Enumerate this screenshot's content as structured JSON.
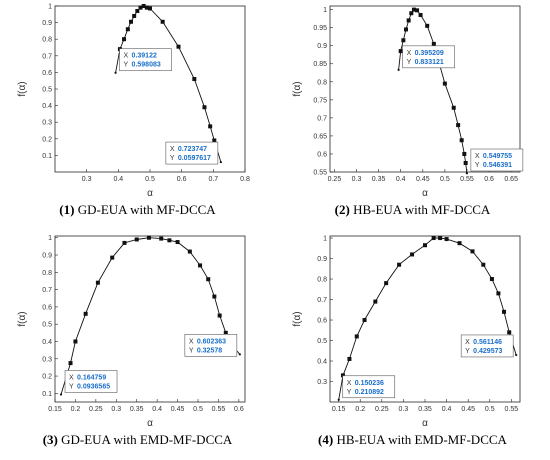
{
  "chart_data": [
    {
      "type": "line",
      "caption_num": "(1)",
      "caption_text": " GD-EUA with MF-DCCA",
      "xlabel": "α",
      "ylabel": "f(α)",
      "xlim": [
        0.2,
        0.8
      ],
      "ylim": [
        0.0,
        1.0
      ],
      "xticks": [
        "0.3",
        "0.4",
        "0.5",
        "0.6",
        "0.7",
        "0.8"
      ],
      "yticks": [
        "0.1",
        "0.2",
        "0.3",
        "0.4",
        "0.5",
        "0.6",
        "0.7",
        "0.8",
        "0.9",
        "1"
      ],
      "x": [
        0.39122,
        0.405,
        0.418,
        0.43,
        0.44,
        0.45,
        0.46,
        0.47,
        0.48,
        0.49,
        0.5,
        0.54,
        0.59,
        0.64,
        0.672,
        0.69,
        0.703,
        0.723747
      ],
      "y": [
        0.598083,
        0.74,
        0.8,
        0.86,
        0.905,
        0.94,
        0.97,
        0.99,
        1.0,
        0.99,
        0.985,
        0.905,
        0.755,
        0.56,
        0.39,
        0.275,
        0.19,
        0.0597617
      ],
      "datatips": [
        {
          "x_label": "X",
          "x_value": "0.39122",
          "y_label": "Y",
          "y_value": "0.598083",
          "x": 0.39122,
          "y": 0.598083,
          "side": "right"
        },
        {
          "x_label": "X",
          "x_value": "0.723747",
          "y_label": "Y",
          "y_value": "0.0597617",
          "x": 0.723747,
          "y": 0.0597617,
          "side": "left"
        }
      ]
    },
    {
      "type": "line",
      "caption_num": "(2)",
      "caption_text": " HB-EUA with MF-DCCA",
      "xlabel": "α",
      "ylabel": "f(α)",
      "xlim": [
        0.24,
        0.67
      ],
      "ylim": [
        0.55,
        1.01
      ],
      "xticks": [
        "0.25",
        "0.3",
        "0.35",
        "0.4",
        "0.45",
        "0.5",
        "0.55",
        "0.6",
        "0.65"
      ],
      "yticks": [
        "0.55",
        "0.6",
        "0.65",
        "0.7",
        "0.75",
        "0.8",
        "0.85",
        "0.9",
        "0.95",
        "1"
      ],
      "x": [
        0.395209,
        0.4,
        0.406,
        0.412,
        0.418,
        0.424,
        0.43,
        0.437,
        0.445,
        0.46,
        0.475,
        0.5,
        0.52,
        0.53,
        0.538,
        0.544,
        0.547,
        0.549755
      ],
      "y": [
        0.833121,
        0.885,
        0.915,
        0.945,
        0.97,
        0.99,
        1.0,
        0.998,
        0.985,
        0.955,
        0.905,
        0.795,
        0.728,
        0.68,
        0.638,
        0.6,
        0.575,
        0.546391
      ],
      "datatips": [
        {
          "x_label": "X",
          "x_value": "0.395209",
          "y_label": "Y",
          "y_value": "0.833121",
          "x": 0.395209,
          "y": 0.833121,
          "side": "right"
        },
        {
          "x_label": "X",
          "x_value": "0.549755",
          "y_label": "Y",
          "y_value": "0.546391",
          "x": 0.549755,
          "y": 0.546391,
          "side": "right"
        }
      ]
    },
    {
      "type": "line",
      "caption_num": "(3)",
      "caption_text": " GD-EUA with EMD-MF-DCCA",
      "xlabel": "α",
      "ylabel": "f(α)",
      "xlim": [
        0.15,
        0.615
      ],
      "ylim": [
        0.05,
        1.01
      ],
      "xticks": [
        "0.15",
        "0.2",
        "0.25",
        "0.3",
        "0.35",
        "0.4",
        "0.45",
        "0.5",
        "0.55",
        "0.6"
      ],
      "yticks": [
        "0.1",
        "0.2",
        "0.3",
        "0.4",
        "0.5",
        "0.6",
        "0.7",
        "0.8",
        "0.9",
        "1"
      ],
      "x": [
        0.164759,
        0.188,
        0.2,
        0.225,
        0.255,
        0.29,
        0.32,
        0.35,
        0.38,
        0.41,
        0.43,
        0.45,
        0.48,
        0.505,
        0.525,
        0.54,
        0.553,
        0.568,
        0.582,
        0.602363
      ],
      "y": [
        0.0936565,
        0.275,
        0.4,
        0.56,
        0.74,
        0.885,
        0.97,
        0.99,
        1.0,
        0.995,
        0.985,
        0.975,
        0.92,
        0.84,
        0.76,
        0.66,
        0.55,
        0.45,
        0.38,
        0.32578
      ],
      "datatips": [
        {
          "x_label": "X",
          "x_value": "0.164759",
          "y_label": "Y",
          "y_value": "0.0936565",
          "x": 0.164759,
          "y": 0.0936565,
          "side": "right"
        },
        {
          "x_label": "X",
          "x_value": "0.602363",
          "y_label": "Y",
          "y_value": "0.32578",
          "x": 0.602363,
          "y": 0.32578,
          "side": "left"
        }
      ]
    },
    {
      "type": "line",
      "caption_num": "(4)",
      "caption_text": " HB-EUA with EMD-MF-DCCA",
      "xlabel": "α",
      "ylabel": "f(α)",
      "xlim": [
        0.13,
        0.57
      ],
      "ylim": [
        0.2,
        1.01
      ],
      "xticks": [
        "0.15",
        "0.2",
        "0.25",
        "0.3",
        "0.35",
        "0.4",
        "0.45",
        "0.5",
        "0.55"
      ],
      "yticks": [
        "0.3",
        "0.4",
        "0.5",
        "0.6",
        "0.7",
        "0.8",
        "0.9",
        "1"
      ],
      "x": [
        0.150236,
        0.16,
        0.175,
        0.192,
        0.21,
        0.235,
        0.26,
        0.29,
        0.32,
        0.35,
        0.37,
        0.385,
        0.4,
        0.43,
        0.46,
        0.485,
        0.505,
        0.52,
        0.533,
        0.545,
        0.561146
      ],
      "y": [
        0.210892,
        0.33,
        0.41,
        0.52,
        0.6,
        0.69,
        0.78,
        0.87,
        0.92,
        0.965,
        1.0,
        1.0,
        0.995,
        0.975,
        0.935,
        0.87,
        0.8,
        0.73,
        0.64,
        0.54,
        0.429573
      ],
      "datatips": [
        {
          "x_label": "X",
          "x_value": "0.150236",
          "y_label": "Y",
          "y_value": "0.210892",
          "x": 0.150236,
          "y": 0.210892,
          "side": "right"
        },
        {
          "x_label": "X",
          "x_value": "0.561146",
          "y_label": "Y",
          "y_value": "0.429573",
          "x": 0.561146,
          "y": 0.429573,
          "side": "left"
        }
      ]
    }
  ]
}
